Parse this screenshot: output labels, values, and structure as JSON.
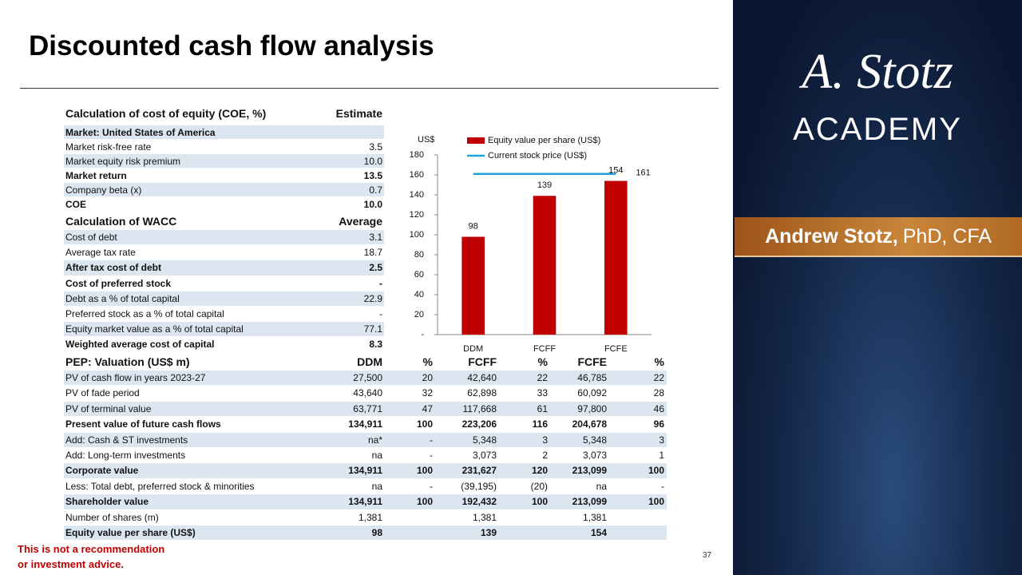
{
  "header": {
    "title": "Discounted cash flow analysis"
  },
  "brand": {
    "logo": "A. Stotz",
    "academy": "ACADEMY",
    "presenter": "Andrew Stotz,",
    "credentials": "PhD, CFA"
  },
  "coe_table": {
    "header": [
      "Calculation of cost of equity (COE, %)",
      "Estimate"
    ],
    "rows": [
      {
        "label": "Market: United States of America",
        "value": null,
        "bold": true
      },
      {
        "label": "Market risk-free rate",
        "value": "3.5",
        "bold": false
      },
      {
        "label": "Market equity risk premium",
        "value": "10.0",
        "bold": false
      },
      {
        "label": "Market return",
        "value": "13.5",
        "bold": true
      },
      {
        "label": "Company beta (x)",
        "value": "0.7",
        "bold": false
      },
      {
        "label": "COE",
        "value": "10.0",
        "bold": true
      }
    ]
  },
  "wacc_table": {
    "header": [
      "Calculation of WACC",
      "Average"
    ],
    "rows": [
      {
        "label": "Cost of debt",
        "value": "3.1",
        "bold": false
      },
      {
        "label": "Average tax rate",
        "value": "18.7",
        "bold": false
      },
      {
        "label": "After tax cost of debt",
        "value": "2.5",
        "bold": true
      },
      {
        "label": "Cost of preferred stock",
        "value": "-",
        "bold": true
      },
      {
        "label": "Debt as a % of total capital",
        "value": "22.9",
        "bold": false
      },
      {
        "label": "Preferred stock as a % of total capital",
        "value": "-",
        "bold": false
      },
      {
        "label": "Equity market value as a % of total capital",
        "value": "77.1",
        "bold": false
      },
      {
        "label": "Weighted average cost of capital",
        "value": "8.3",
        "bold": true
      }
    ]
  },
  "valuation_table": {
    "header": [
      "PEP: Valuation (US$ m)",
      "DDM",
      "%",
      "FCFF",
      "%",
      "FCFE",
      "%"
    ],
    "rows": [
      {
        "label": "PV of cash flow in years 2023-27",
        "values": [
          "27,500",
          "20",
          "42,640",
          "22",
          "46,785",
          "22"
        ],
        "bold": false
      },
      {
        "label": "PV of fade period",
        "values": [
          "43,640",
          "32",
          "62,898",
          "33",
          "60,092",
          "28"
        ],
        "bold": false
      },
      {
        "label": "PV of terminal value",
        "values": [
          "63,771",
          "47",
          "117,668",
          "61",
          "97,800",
          "46"
        ],
        "bold": false
      },
      {
        "label": "Present value of future cash flows",
        "values": [
          "134,911",
          "100",
          "223,206",
          "116",
          "204,678",
          "96"
        ],
        "bold": true
      },
      {
        "label": "Add: Cash & ST investments",
        "values": [
          "na*",
          "-",
          "5,348",
          "3",
          "5,348",
          "3"
        ],
        "bold": false
      },
      {
        "label": "Add: Long-term investments",
        "values": [
          "na",
          "-",
          "3,073",
          "2",
          "3,073",
          "1"
        ],
        "bold": false
      },
      {
        "label": "Corporate value",
        "values": [
          "134,911",
          "100",
          "231,627",
          "120",
          "213,099",
          "100"
        ],
        "bold": true
      },
      {
        "label": "Less: Total debt, preferred stock & minorities",
        "values": [
          "na",
          "-",
          "(39,195)",
          "(20)",
          "na",
          "-"
        ],
        "bold": false
      },
      {
        "label": "Shareholder value",
        "values": [
          "134,911",
          "100",
          "192,432",
          "100",
          "213,099",
          "100"
        ],
        "bold": true
      },
      {
        "label": "Number of shares (m)",
        "values": [
          "1,381",
          null,
          "1,381",
          null,
          "1,381",
          null
        ],
        "bold": false
      },
      {
        "label": "Equity value per share (US$)",
        "values": [
          "98",
          null,
          "139",
          null,
          "154",
          null
        ],
        "bold": true
      }
    ]
  },
  "chart_data": {
    "type": "bar",
    "y_label": "US$",
    "categories": [
      "DDM",
      "FCFF",
      "FCFE"
    ],
    "series": [
      {
        "name": "Equity value per share (US$)",
        "type": "bar",
        "color": "#c00000",
        "values": [
          98,
          139,
          154
        ]
      },
      {
        "name": "Current stock price (US$)",
        "type": "line",
        "color": "#1fa3d9",
        "values": [
          161,
          161,
          161
        ]
      }
    ],
    "ylim": [
      0,
      180
    ],
    "yticks": [
      {
        "value": 0,
        "label": "-"
      },
      20,
      40,
      60,
      80,
      100,
      120,
      140,
      160,
      180
    ],
    "grid": false,
    "legend": "top"
  },
  "footer": {
    "disclaimer": [
      "This is not a recommendation",
      "or investment advice."
    ],
    "page_number": "37"
  }
}
